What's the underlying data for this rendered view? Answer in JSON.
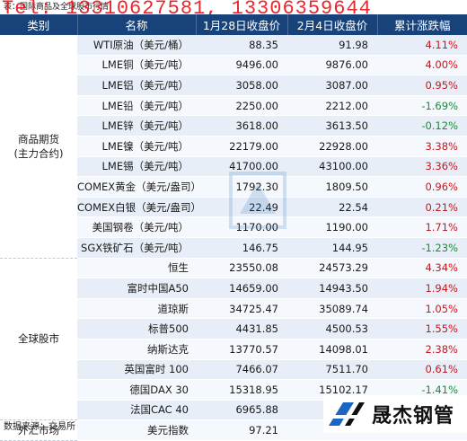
{
  "caption": "表：国际商品及全球股市行情",
  "overlay_phone": "Tel: 13310627581, 13306359644",
  "columns": [
    "类别",
    "名称",
    "1月28日收盘价",
    "2月4日收盘价",
    "累计涨跌幅"
  ],
  "groups": [
    {
      "category": "商品期货\n(主力合约)",
      "rows": [
        {
          "name": "WTI原油（美元/桶）",
          "jan28": "88.35",
          "feb4": "91.98",
          "change": "4.11%",
          "dir": "pos"
        },
        {
          "name": "LME铜（美元/吨）",
          "jan28": "9496.00",
          "feb4": "9876.00",
          "change": "4.00%",
          "dir": "pos"
        },
        {
          "name": "LME铝（美元/吨）",
          "jan28": "3058.00",
          "feb4": "3087.00",
          "change": "0.95%",
          "dir": "pos"
        },
        {
          "name": "LME铅（美元/吨）",
          "jan28": "2250.00",
          "feb4": "2212.00",
          "change": "-1.69%",
          "dir": "neg"
        },
        {
          "name": "LME锌（美元/吨）",
          "jan28": "3618.00",
          "feb4": "3613.50",
          "change": "-0.12%",
          "dir": "neg"
        },
        {
          "name": "LME镍（美元/吨）",
          "jan28": "22179.00",
          "feb4": "22928.00",
          "change": "3.38%",
          "dir": "pos"
        },
        {
          "name": "LME锡（美元/吨）",
          "jan28": "41700.00",
          "feb4": "43100.00",
          "change": "3.36%",
          "dir": "pos"
        },
        {
          "name": "COMEX黄金（美元/盎司）",
          "jan28": "1792.30",
          "feb4": "1809.50",
          "change": "0.96%",
          "dir": "pos"
        },
        {
          "name": "COMEX白银（美元/盎司）",
          "jan28": "22.49",
          "feb4": "22.54",
          "change": "0.21%",
          "dir": "pos"
        },
        {
          "name": "美国钢卷（美元/吨）",
          "jan28": "1170.00",
          "feb4": "1190.00",
          "change": "1.71%",
          "dir": "pos"
        },
        {
          "name": "SGX铁矿石（美元/吨）",
          "jan28": "146.75",
          "feb4": "144.95",
          "change": "-1.23%",
          "dir": "neg"
        }
      ]
    },
    {
      "category": "全球股市",
      "rows": [
        {
          "name": "恒生",
          "jan28": "23550.08",
          "feb4": "24573.29",
          "change": "4.34%",
          "dir": "pos"
        },
        {
          "name": "富时中国A50",
          "jan28": "14659.00",
          "feb4": "14943.50",
          "change": "1.94%",
          "dir": "pos"
        },
        {
          "name": "道琼斯",
          "jan28": "34725.47",
          "feb4": "35089.74",
          "change": "1.05%",
          "dir": "pos"
        },
        {
          "name": "标普500",
          "jan28": "4431.85",
          "feb4": "4500.53",
          "change": "1.55%",
          "dir": "pos"
        },
        {
          "name": "纳斯达克",
          "jan28": "13770.57",
          "feb4": "14098.01",
          "change": "2.38%",
          "dir": "pos"
        },
        {
          "name": "英国富时 100",
          "jan28": "7466.07",
          "feb4": "7511.70",
          "change": "0.61%",
          "dir": "pos"
        },
        {
          "name": "德国DAX 30",
          "jan28": "15318.95",
          "feb4": "15102.17",
          "change": "-1.41%",
          "dir": "neg"
        },
        {
          "name": "法国CAC 40",
          "jan28": "6965.88",
          "feb4": "",
          "change": "",
          "dir": "pos"
        }
      ]
    },
    {
      "category": "外汇市场",
      "rows": [
        {
          "name": "美元指数",
          "jan28": "97.21",
          "feb4": "",
          "change": "",
          "dir": "pos"
        }
      ]
    }
  ],
  "source": "数据来源：交易所",
  "logo_text": "晟杰钢管",
  "colors": {
    "header_bg": "#17427a",
    "positive": "#c8161d",
    "negative": "#1f8a3a",
    "phone_overlay": "#e8141b"
  }
}
